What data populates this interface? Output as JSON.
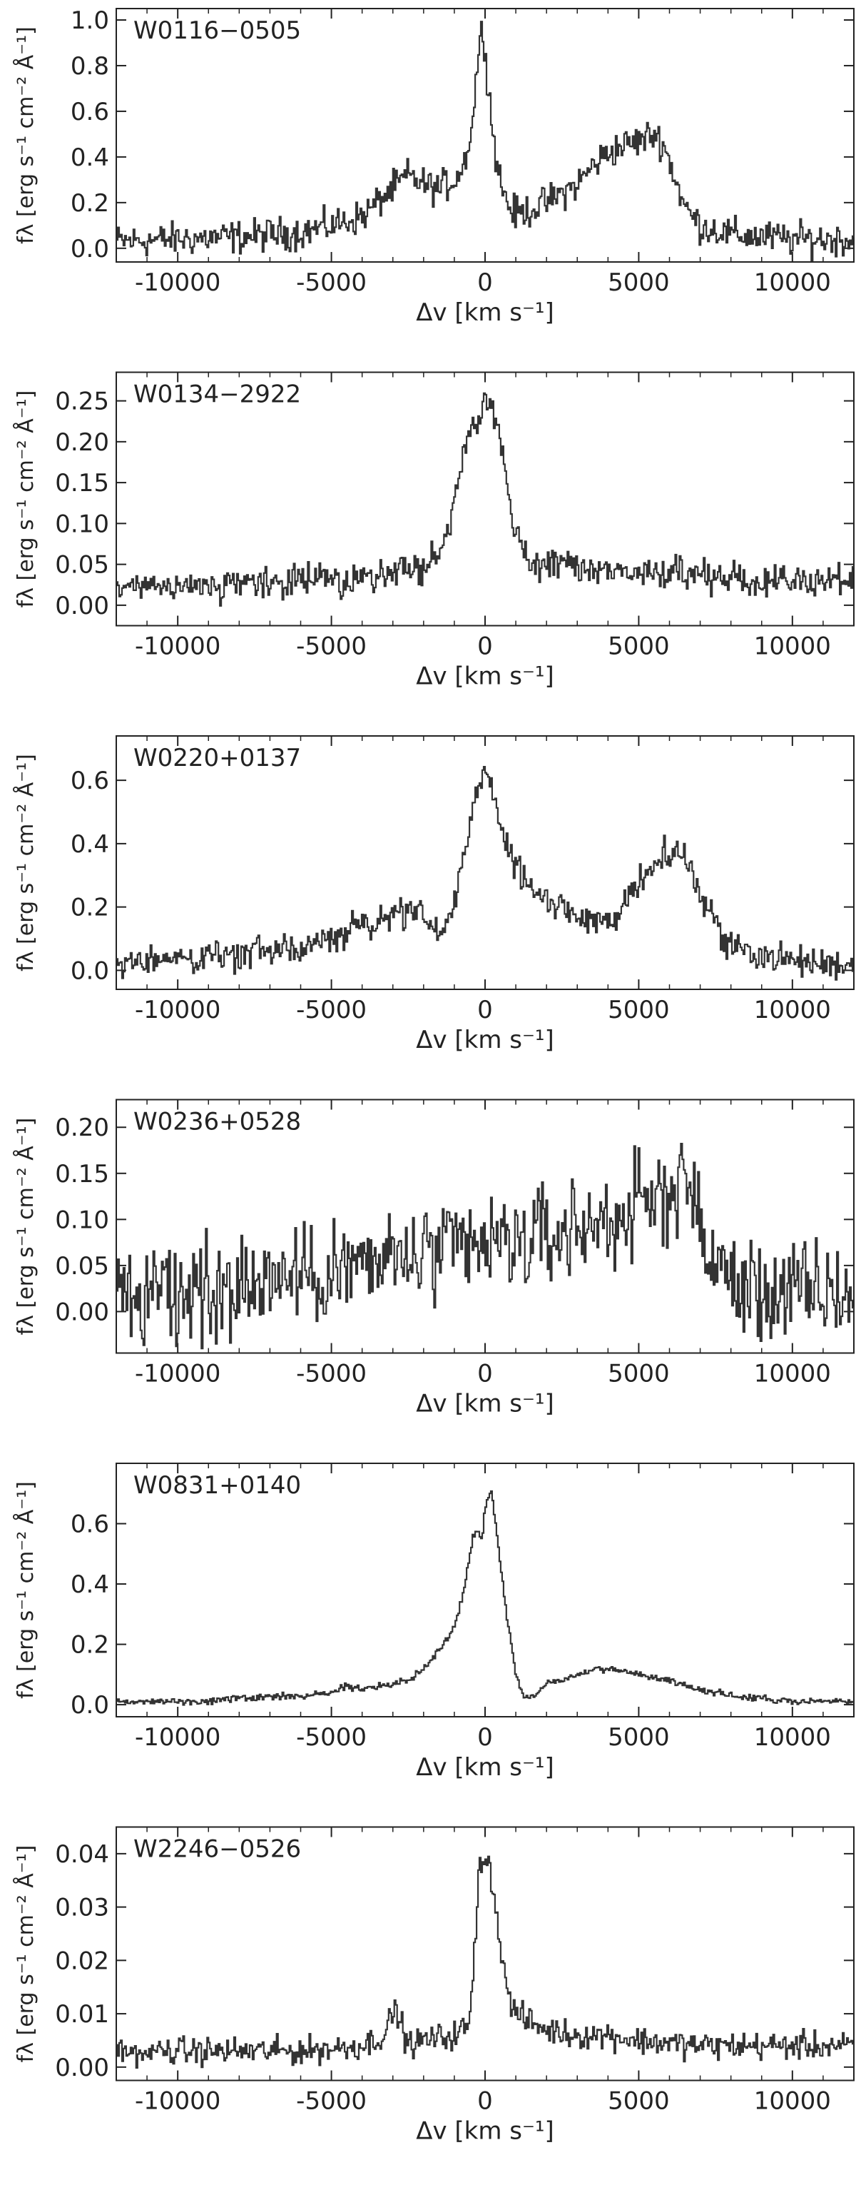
{
  "chart_data": [
    {
      "type": "line",
      "title": "W0116−0505",
      "xlabel": "Δv [km s⁻¹]",
      "ylabel": "fλ [erg s⁻¹ cm⁻² Å⁻¹]",
      "xlim": [
        -12000,
        12000
      ],
      "ylim": [
        -0.06,
        1.05
      ],
      "xticks": [
        -10000,
        -5000,
        0,
        5000,
        10000
      ],
      "yticks": [
        0.0,
        0.2,
        0.4,
        0.6,
        0.8,
        1.0
      ],
      "ytick_labels": [
        "0.0",
        "0.2",
        "0.4",
        "0.6",
        "0.8",
        "1.0"
      ],
      "noise": 0.045,
      "x": [
        -12000,
        -10000,
        -8000,
        -6000,
        -5000,
        -4000,
        -3000,
        -2500,
        -2000,
        -1500,
        -1000,
        -700,
        -400,
        -250,
        -100,
        0,
        100,
        250,
        400,
        600,
        800,
        1000,
        1500,
        2000,
        2500,
        3000,
        3500,
        4000,
        4500,
        5000,
        5500,
        5800,
        6200,
        6500,
        7000,
        8000,
        9000,
        10000,
        11000,
        12000
      ],
      "y": [
        0.03,
        0.04,
        0.05,
        0.07,
        0.1,
        0.14,
        0.26,
        0.32,
        0.28,
        0.26,
        0.3,
        0.36,
        0.55,
        0.82,
        0.95,
        0.9,
        0.72,
        0.52,
        0.36,
        0.25,
        0.18,
        0.15,
        0.17,
        0.2,
        0.24,
        0.28,
        0.36,
        0.42,
        0.45,
        0.47,
        0.5,
        0.46,
        0.3,
        0.18,
        0.1,
        0.06,
        0.05,
        0.04,
        0.04,
        0.04
      ]
    },
    {
      "type": "line",
      "title": "W0134−2922",
      "xlabel": "Δv [km s⁻¹]",
      "ylabel": "fλ [erg s⁻¹ cm⁻² Å⁻¹]",
      "xlim": [
        -12000,
        12000
      ],
      "ylim": [
        -0.025,
        0.285
      ],
      "xticks": [
        -10000,
        -5000,
        0,
        5000,
        10000
      ],
      "yticks": [
        0.0,
        0.05,
        0.1,
        0.15,
        0.2,
        0.25
      ],
      "ytick_labels": [
        "0.00",
        "0.05",
        "0.10",
        "0.15",
        "0.20",
        "0.25"
      ],
      "noise": 0.012,
      "x": [
        -12000,
        -10000,
        -8000,
        -6000,
        -4000,
        -3000,
        -2000,
        -1500,
        -1200,
        -900,
        -600,
        -300,
        0,
        300,
        600,
        900,
        1200,
        1500,
        2000,
        3000,
        5000,
        7000,
        9000,
        11000,
        12000
      ],
      "y": [
        0.02,
        0.02,
        0.025,
        0.03,
        0.035,
        0.04,
        0.045,
        0.06,
        0.09,
        0.15,
        0.2,
        0.22,
        0.25,
        0.23,
        0.18,
        0.11,
        0.07,
        0.055,
        0.05,
        0.045,
        0.04,
        0.035,
        0.03,
        0.03,
        0.03
      ]
    },
    {
      "type": "line",
      "title": "W0220+0137",
      "xlabel": "Δv [km s⁻¹]",
      "ylabel": "fλ [erg s⁻¹ cm⁻² Å⁻¹]",
      "xlim": [
        -12000,
        12000
      ],
      "ylim": [
        -0.06,
        0.74
      ],
      "xticks": [
        -10000,
        -5000,
        0,
        5000,
        10000
      ],
      "yticks": [
        0.0,
        0.2,
        0.4,
        0.6
      ],
      "ytick_labels": [
        "0.0",
        "0.2",
        "0.4",
        "0.6"
      ],
      "noise": 0.03,
      "x": [
        -12000,
        -10000,
        -8000,
        -6000,
        -5000,
        -4000,
        -3000,
        -2000,
        -1500,
        -1000,
        -600,
        -300,
        0,
        300,
        600,
        1000,
        1500,
        2000,
        2500,
        3000,
        3500,
        4000,
        4500,
        5000,
        5500,
        6000,
        6500,
        7000,
        7500,
        8000,
        9000,
        10000,
        11000,
        12000
      ],
      "y": [
        0.02,
        0.04,
        0.05,
        0.07,
        0.1,
        0.14,
        0.18,
        0.18,
        0.1,
        0.22,
        0.38,
        0.55,
        0.64,
        0.55,
        0.42,
        0.33,
        0.27,
        0.22,
        0.19,
        0.16,
        0.15,
        0.16,
        0.2,
        0.28,
        0.35,
        0.38,
        0.35,
        0.25,
        0.15,
        0.08,
        0.05,
        0.03,
        0.02,
        0.02
      ]
    },
    {
      "type": "line",
      "title": "W0236+0528",
      "xlabel": "Δv [km s⁻¹]",
      "ylabel": "fλ [erg s⁻¹ cm⁻² Å⁻¹]",
      "xlim": [
        -12000,
        12000
      ],
      "ylim": [
        -0.045,
        0.23
      ],
      "xticks": [
        -10000,
        -5000,
        0,
        5000,
        10000
      ],
      "yticks": [
        0.0,
        0.05,
        0.1,
        0.15,
        0.2
      ],
      "ytick_labels": [
        "0.00",
        "0.05",
        "0.10",
        "0.15",
        "0.20"
      ],
      "noise": 0.035,
      "x": [
        -12000,
        -10000,
        -8000,
        -6000,
        -4000,
        -2000,
        0,
        2000,
        3000,
        4000,
        5000,
        6000,
        6500,
        7000,
        8000,
        9000,
        10000,
        12000
      ],
      "y": [
        0.01,
        0.02,
        0.03,
        0.04,
        0.05,
        0.06,
        0.07,
        0.08,
        0.09,
        0.1,
        0.11,
        0.13,
        0.16,
        0.08,
        0.03,
        0.02,
        0.02,
        0.02
      ]
    },
    {
      "type": "line",
      "title": "W0831+0140",
      "xlabel": "Δv [km s⁻¹]",
      "ylabel": "fλ [erg s⁻¹ cm⁻² Å⁻¹]",
      "xlim": [
        -12000,
        12000
      ],
      "ylim": [
        -0.04,
        0.8
      ],
      "xticks": [
        -10000,
        -5000,
        0,
        5000,
        10000
      ],
      "yticks": [
        0.0,
        0.2,
        0.4,
        0.6
      ],
      "ytick_labels": [
        "0.0",
        "0.2",
        "0.4",
        "0.6"
      ],
      "noise": 0.007,
      "x": [
        -12000,
        -10000,
        -8000,
        -6000,
        -5000,
        -4500,
        -4000,
        -3500,
        -3000,
        -2500,
        -2000,
        -1500,
        -1000,
        -700,
        -400,
        -250,
        -100,
        0,
        200,
        400,
        700,
        1000,
        1300,
        1600,
        2000,
        2500,
        3000,
        3500,
        4000,
        4500,
        5000,
        6000,
        7000,
        8000,
        9000,
        10000,
        12000
      ],
      "y": [
        0.01,
        0.01,
        0.02,
        0.03,
        0.04,
        0.06,
        0.05,
        0.06,
        0.07,
        0.08,
        0.12,
        0.18,
        0.26,
        0.37,
        0.55,
        0.58,
        0.55,
        0.65,
        0.72,
        0.55,
        0.3,
        0.1,
        0.02,
        0.03,
        0.07,
        0.08,
        0.1,
        0.11,
        0.12,
        0.11,
        0.1,
        0.08,
        0.05,
        0.03,
        0.02,
        0.01,
        0.01
      ]
    },
    {
      "type": "line",
      "title": "W2246−0526",
      "xlabel": "Δv [km s⁻¹]",
      "ylabel": "fλ [erg s⁻¹ cm⁻² Å⁻¹]",
      "xlim": [
        -12000,
        12000
      ],
      "ylim": [
        -0.0025,
        0.045
      ],
      "xticks": [
        -10000,
        -5000,
        0,
        5000,
        10000
      ],
      "yticks": [
        0.0,
        0.01,
        0.02,
        0.03,
        0.04
      ],
      "ytick_labels": [
        "0.00",
        "0.01",
        "0.02",
        "0.03",
        "0.04"
      ],
      "noise": 0.0016,
      "x": [
        -12000,
        -10000,
        -8000,
        -6000,
        -4000,
        -3300,
        -2900,
        -2500,
        -2000,
        -1000,
        -500,
        -300,
        -200,
        0,
        200,
        400,
        600,
        800,
        1000,
        1300,
        1600,
        2000,
        3000,
        4000,
        5000,
        7000,
        9000,
        11000,
        12000
      ],
      "y": [
        0.003,
        0.003,
        0.003,
        0.003,
        0.004,
        0.006,
        0.011,
        0.004,
        0.005,
        0.006,
        0.008,
        0.025,
        0.038,
        0.04,
        0.036,
        0.028,
        0.018,
        0.013,
        0.01,
        0.009,
        0.008,
        0.007,
        0.006,
        0.006,
        0.005,
        0.004,
        0.004,
        0.004,
        0.004
      ]
    }
  ]
}
